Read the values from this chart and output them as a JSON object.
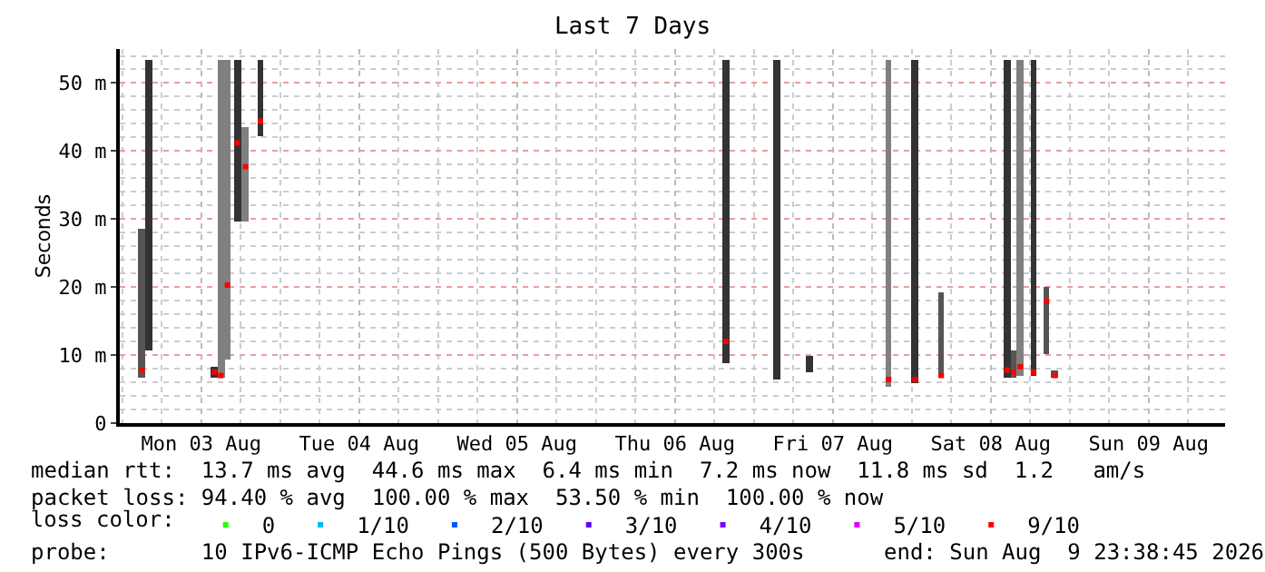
{
  "chart_data": {
    "type": "bar",
    "title": "Last 7 Days",
    "ylabel": "Seconds",
    "legend_title": "loss color:",
    "legend": "bottom",
    "grid": true,
    "marker": "square",
    "x": [
      "2026-08-03T03:00",
      "2026-08-03T04:00",
      "2026-08-03T14:00",
      "2026-08-03T15:00",
      "2026-08-03T16:00",
      "2026-08-03T17:30",
      "2026-08-03T18:45",
      "2026-08-03T21:00",
      "2026-08-06T19:45",
      "2026-08-07T03:30",
      "2026-08-07T08:30",
      "2026-08-07T20:30",
      "2026-08-08T00:30",
      "2026-08-08T04:30",
      "2026-08-08T14:30",
      "2026-08-08T15:30",
      "2026-08-08T16:30",
      "2026-08-08T18:30",
      "2026-08-08T20:30",
      "2026-08-08T21:45"
    ],
    "series": [
      {
        "type": "bar",
        "base": [
          6.7,
          10.7,
          6.7,
          6.7,
          9.4,
          29.7,
          29.7,
          42.2,
          8.8,
          6.4,
          7.5,
          5.3,
          5.9,
          6.7,
          6.7,
          6.7,
          7.0,
          7.0,
          10.2,
          6.7
        ],
        "values": [
          21.9,
          42.8,
          1.6,
          46.8,
          44.1,
          23.8,
          13.9,
          11.3,
          44.7,
          47.1,
          2.4,
          48.2,
          47.6,
          12.6,
          46.8,
          4.0,
          46.5,
          46.5,
          9.8,
          1.1
        ],
        "colors": [
          "#555555",
          "#333333",
          "#333333",
          "#808080",
          "#808080",
          "#333333",
          "#808080",
          "#333333",
          "#333333",
          "#333333",
          "#333333",
          "#808080",
          "#333333",
          "#555555",
          "#333333",
          "#555555",
          "#808080",
          "#333333",
          "#555555",
          "#555555"
        ]
      },
      {
        "type": "scatter",
        "name": "0",
        "color": "#26ff00",
        "values": [
          null,
          null,
          null,
          null,
          null,
          null,
          null,
          null,
          null,
          null,
          null,
          null,
          null,
          null,
          null,
          null,
          null,
          null,
          null,
          null
        ]
      },
      {
        "type": "scatter",
        "name": "1/10",
        "color": "#00b8ff",
        "values": [
          null,
          null,
          null,
          null,
          null,
          null,
          null,
          null,
          null,
          null,
          null,
          null,
          null,
          null,
          null,
          null,
          null,
          null,
          null,
          null
        ]
      },
      {
        "type": "scatter",
        "name": "2/10",
        "color": "#0059ff",
        "values": [
          null,
          null,
          null,
          null,
          null,
          null,
          null,
          null,
          null,
          null,
          null,
          null,
          null,
          null,
          null,
          null,
          null,
          null,
          null,
          null
        ]
      },
      {
        "type": "scatter",
        "name": "3/10",
        "color": "#5e00ff",
        "values": [
          null,
          null,
          null,
          null,
          null,
          null,
          null,
          null,
          null,
          null,
          null,
          null,
          null,
          null,
          null,
          null,
          null,
          null,
          null,
          null
        ]
      },
      {
        "type": "scatter",
        "name": "4/10",
        "color": "#7e00ff",
        "values": [
          null,
          null,
          null,
          null,
          null,
          null,
          null,
          null,
          null,
          null,
          null,
          null,
          null,
          null,
          null,
          null,
          null,
          null,
          null,
          null
        ]
      },
      {
        "type": "scatter",
        "name": "5/10",
        "color": "#dd00ff",
        "values": [
          null,
          null,
          null,
          null,
          null,
          null,
          null,
          null,
          null,
          null,
          null,
          null,
          null,
          null,
          null,
          null,
          null,
          null,
          null,
          null
        ]
      },
      {
        "type": "scatter",
        "name": "9/10",
        "color": "#ff0000",
        "values": [
          7.8,
          null,
          7.5,
          7.0,
          20.3,
          41.2,
          37.7,
          44.4,
          12.0,
          null,
          null,
          6.4,
          6.4,
          7.0,
          7.8,
          7.5,
          8.3,
          7.5,
          17.9,
          7.0
        ]
      }
    ],
    "xlim": [
      "2026-08-02T23:38",
      "2026-08-09T23:38"
    ],
    "xticks": [
      {
        "value": "2026-08-03T12:00",
        "label": "Mon 03 Aug"
      },
      {
        "value": "2026-08-04T12:00",
        "label": "Tue 04 Aug"
      },
      {
        "value": "2026-08-05T12:00",
        "label": "Wed 05 Aug"
      },
      {
        "value": "2026-08-06T12:00",
        "label": "Thu 06 Aug"
      },
      {
        "value": "2026-08-07T12:00",
        "label": "Fri 07 Aug"
      },
      {
        "value": "2026-08-08T12:00",
        "label": "Sat 08 Aug"
      },
      {
        "value": "2026-08-09T12:00",
        "label": "Sun 09 Aug"
      }
    ],
    "ylim": [
      0,
      55
    ],
    "yticks": [
      0,
      {
        "value": 10,
        "label": "10 m"
      },
      {
        "value": 20,
        "label": "20 m"
      },
      {
        "value": 30,
        "label": "30 m"
      },
      {
        "value": 40,
        "label": "40 m"
      },
      {
        "value": 50,
        "label": "50 m"
      }
    ],
    "annotations": [
      "median rtt:  13.7 ms avg  44.6 ms max  6.4 ms min  7.2 ms now  11.8 ms sd  1.2   am/s",
      "packet loss: 94.40 % avg  100.00 % max  53.50 % min  100.00 % now",
      "probe:       10 IPv6-ICMP Echo Pings (500 Bytes) every 300s",
      "end: Sun Aug  9 23:38:45 2026"
    ]
  }
}
